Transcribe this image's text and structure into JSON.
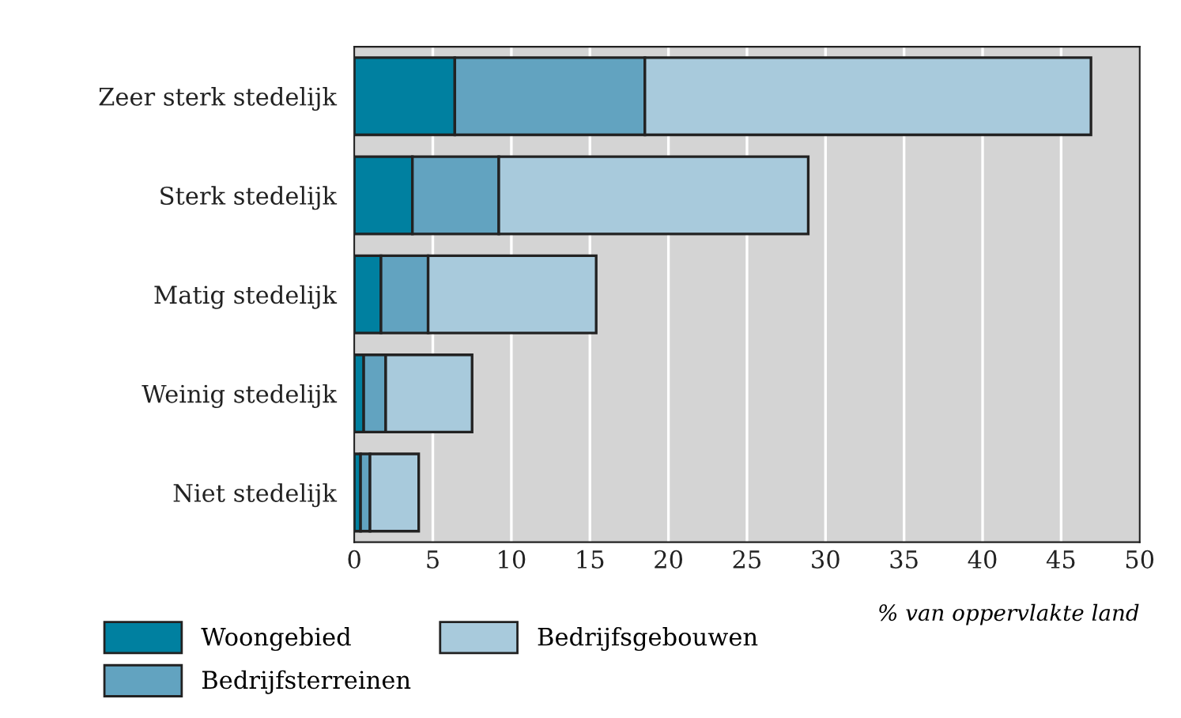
{
  "chart_data": {
    "type": "bar",
    "orientation": "horizontal",
    "stacked": true,
    "categories": [
      "Zeer sterk stedelijk",
      "Sterk stedelijk",
      "Matig stedelijk",
      "Weinig stedelijk",
      "Niet stedelijk"
    ],
    "series": [
      {
        "name": "Woongebied",
        "color": "#0080a0",
        "values": [
          6.4,
          3.7,
          1.7,
          0.6,
          0.4
        ]
      },
      {
        "name": "Bedrijfsterreinen",
        "color": "#62a3c0",
        "values": [
          12.1,
          5.5,
          3.0,
          1.4,
          0.6
        ]
      },
      {
        "name": "Bedrijfsgebouwen",
        "color": "#a8cadc",
        "values": [
          28.4,
          19.7,
          10.7,
          5.5,
          3.1
        ]
      }
    ],
    "xlim": [
      0,
      50
    ],
    "xticks": [
      0,
      5,
      10,
      15,
      20,
      25,
      30,
      35,
      40,
      45,
      50
    ],
    "xlabel": "% van oppervlakte land",
    "grid": "x",
    "legend": "bottom"
  }
}
